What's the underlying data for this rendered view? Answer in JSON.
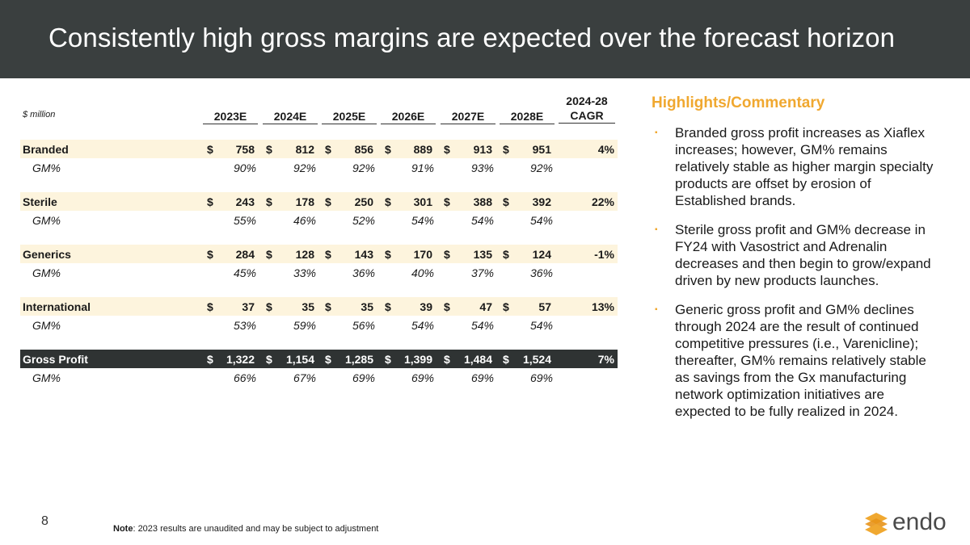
{
  "slide": {
    "title": "Consistently high gross margins are expected over the forecast horizon",
    "page_number": "8",
    "note_label": "Note",
    "note_text": ": 2023 results are unaudited and may be subject to adjustment",
    "logo_text": "endo"
  },
  "table": {
    "units": "$ million",
    "years": [
      "2023E",
      "2024E",
      "2025E",
      "2026E",
      "2027E",
      "2028E"
    ],
    "cagr_header": [
      "2024-28",
      "CAGR"
    ],
    "segments": [
      {
        "label": "Branded",
        "values": [
          "758",
          "812",
          "856",
          "889",
          "913",
          "951"
        ],
        "cagr": "4%",
        "gm_label": "GM%",
        "gm": [
          "90%",
          "92%",
          "92%",
          "91%",
          "93%",
          "92%"
        ]
      },
      {
        "label": "Sterile",
        "values": [
          "243",
          "178",
          "250",
          "301",
          "388",
          "392"
        ],
        "cagr": "22%",
        "gm_label": "GM%",
        "gm": [
          "55%",
          "46%",
          "52%",
          "54%",
          "54%",
          "54%"
        ]
      },
      {
        "label": "Generics",
        "values": [
          "284",
          "128",
          "143",
          "170",
          "135",
          "124"
        ],
        "cagr": "-1%",
        "gm_label": "GM%",
        "gm": [
          "45%",
          "33%",
          "36%",
          "40%",
          "37%",
          "36%"
        ]
      },
      {
        "label": "International",
        "values": [
          "37",
          "35",
          "35",
          "39",
          "47",
          "57"
        ],
        "cagr": "13%",
        "gm_label": "GM%",
        "gm": [
          "53%",
          "59%",
          "56%",
          "54%",
          "54%",
          "54%"
        ]
      }
    ],
    "total": {
      "label": "Gross Profit",
      "values": [
        "1,322",
        "1,154",
        "1,285",
        "1,399",
        "1,484",
        "1,524"
      ],
      "cagr": "7%",
      "gm_label": "GM%",
      "gm": [
        "66%",
        "67%",
        "69%",
        "69%",
        "69%",
        "69%"
      ]
    },
    "currency_symbol": "$"
  },
  "commentary": {
    "title": "Highlights/Commentary",
    "bullet_marker": "▪",
    "bullets": [
      "Branded gross profit increases as Xiaflex increases; however, GM% remains relatively stable as higher margin specialty products are offset by erosion of Established brands.",
      "Sterile gross profit and GM% decrease in FY24 with Vasostrict and Adrenalin decreases and then begin to grow/expand driven by new products launches.",
      "Generic gross profit and GM% declines through 2024 are the result of continued competitive pressures (i.e., Varenicline); thereafter, GM% remains relatively stable as savings from the Gx manufacturing network optimization initiatives are expected to be fully realized in 2024."
    ]
  },
  "colors": {
    "header_bg": "#3a3f3f",
    "accent": "#f0a830",
    "band": "#fdf4dd",
    "total_bg": "#2f3333"
  }
}
